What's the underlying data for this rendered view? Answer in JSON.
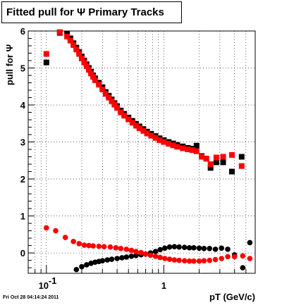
{
  "header": {
    "title": "Fitted pull for  Ψ   Primary Tracks"
  },
  "footer": {
    "timestamp": "Fri Oct 28 04:14:24 2011"
  },
  "chart_data": {
    "type": "scatter",
    "title": "Fitted pull for  Ψ   Primary Tracks",
    "xlabel": "pT (GeV/c)",
    "ylabel": "pull for Ψ",
    "x_scale": "log",
    "xlim": [
      0.07,
      6.0
    ],
    "ylim": [
      -0.55,
      6.0
    ],
    "grid": true,
    "x_tick_labels": [
      {
        "value": 0.1,
        "label": "10",
        "exponent": "-1"
      },
      {
        "value": 1,
        "label": "1",
        "exponent": ""
      }
    ],
    "y_ticks": [
      0,
      1,
      2,
      3,
      4,
      5,
      6
    ],
    "colors": {
      "black_series": "#000000",
      "red_series": "#ff0000"
    },
    "series": [
      {
        "color": "black",
        "marker": "square",
        "x": [
          0.1,
          0.13,
          0.15,
          0.16,
          0.17,
          0.18,
          0.19,
          0.2,
          0.21,
          0.22,
          0.23,
          0.24,
          0.25,
          0.26,
          0.28,
          0.3,
          0.32,
          0.34,
          0.36,
          0.38,
          0.4,
          0.43,
          0.46,
          0.5,
          0.54,
          0.58,
          0.62,
          0.67,
          0.72,
          0.78,
          0.85,
          0.92,
          1.0,
          1.1,
          1.2,
          1.3,
          1.45,
          1.6,
          1.75,
          1.9,
          2.1,
          2.3,
          2.5,
          2.8,
          3.2,
          3.8,
          4.6
        ],
        "y": [
          5.15,
          5.95,
          5.92,
          5.8,
          5.67,
          5.55,
          5.43,
          5.31,
          5.2,
          5.1,
          5.0,
          4.9,
          4.8,
          4.72,
          4.6,
          4.48,
          4.35,
          4.25,
          4.15,
          4.05,
          3.97,
          3.85,
          3.76,
          3.66,
          3.57,
          3.49,
          3.42,
          3.35,
          3.28,
          3.22,
          3.16,
          3.1,
          3.05,
          3.0,
          2.96,
          2.92,
          2.88,
          2.84,
          2.82,
          2.9,
          2.62,
          2.55,
          2.3,
          2.45,
          2.45,
          2.2,
          2.6
        ]
      },
      {
        "color": "red",
        "marker": "square",
        "x": [
          0.1,
          0.13,
          0.15,
          0.16,
          0.17,
          0.18,
          0.19,
          0.2,
          0.21,
          0.22,
          0.23,
          0.24,
          0.25,
          0.26,
          0.28,
          0.3,
          0.32,
          0.34,
          0.36,
          0.38,
          0.4,
          0.43,
          0.46,
          0.5,
          0.54,
          0.58,
          0.62,
          0.67,
          0.72,
          0.78,
          0.85,
          0.92,
          1.0,
          1.1,
          1.2,
          1.3,
          1.45,
          1.6,
          1.75,
          1.9,
          2.1,
          2.3,
          2.5,
          2.8,
          3.2,
          3.8,
          4.6
        ],
        "y": [
          5.38,
          5.97,
          5.85,
          5.74,
          5.62,
          5.5,
          5.38,
          5.26,
          5.15,
          5.05,
          4.95,
          4.85,
          4.76,
          4.67,
          4.55,
          4.42,
          4.3,
          4.2,
          4.1,
          4.01,
          3.92,
          3.8,
          3.71,
          3.61,
          3.52,
          3.44,
          3.37,
          3.3,
          3.23,
          3.17,
          3.11,
          3.05,
          3.0,
          2.95,
          2.91,
          2.87,
          2.83,
          2.8,
          2.78,
          2.75,
          2.6,
          2.55,
          2.4,
          2.58,
          2.6,
          2.65,
          2.35
        ]
      },
      {
        "color": "black",
        "marker": "circle",
        "x": [
          0.18,
          0.2,
          0.22,
          0.24,
          0.26,
          0.28,
          0.3,
          0.33,
          0.36,
          0.4,
          0.44,
          0.48,
          0.53,
          0.58,
          0.64,
          0.7,
          0.77,
          0.85,
          0.93,
          1.02,
          1.12,
          1.23,
          1.35,
          1.5,
          1.65,
          1.8,
          2.0,
          2.2,
          2.45,
          2.75,
          3.1,
          3.5,
          4.0,
          4.7,
          5.4
        ],
        "y": [
          -0.45,
          -0.37,
          -0.32,
          -0.28,
          -0.25,
          -0.23,
          -0.21,
          -0.19,
          -0.17,
          -0.15,
          -0.13,
          -0.11,
          -0.09,
          -0.07,
          -0.05,
          -0.03,
          0.0,
          0.04,
          0.09,
          0.13,
          0.16,
          0.17,
          0.16,
          0.15,
          0.14,
          0.14,
          0.13,
          0.12,
          0.12,
          0.1,
          0.13,
          0.1,
          -0.05,
          -0.4,
          0.28
        ]
      },
      {
        "color": "red",
        "marker": "circle",
        "x": [
          0.1,
          0.12,
          0.145,
          0.17,
          0.19,
          0.21,
          0.23,
          0.25,
          0.28,
          0.31,
          0.35,
          0.39,
          0.43,
          0.48,
          0.53,
          0.58,
          0.64,
          0.7,
          0.77,
          0.85,
          0.93,
          1.02,
          1.12,
          1.23,
          1.35,
          1.5,
          1.65,
          1.8,
          2.0,
          2.2,
          2.45,
          2.75,
          3.1,
          3.5,
          4.0,
          4.7,
          5.4
        ],
        "y": [
          0.68,
          0.6,
          0.42,
          0.31,
          0.25,
          0.21,
          0.2,
          0.19,
          0.18,
          0.17,
          0.16,
          0.14,
          0.12,
          0.1,
          0.07,
          0.04,
          0.01,
          -0.03,
          -0.06,
          -0.09,
          -0.12,
          -0.15,
          -0.17,
          -0.19,
          -0.2,
          -0.21,
          -0.22,
          -0.22,
          -0.22,
          -0.21,
          -0.2,
          -0.18,
          -0.15,
          -0.1,
          -0.1,
          -0.08,
          -0.15
        ]
      }
    ]
  }
}
